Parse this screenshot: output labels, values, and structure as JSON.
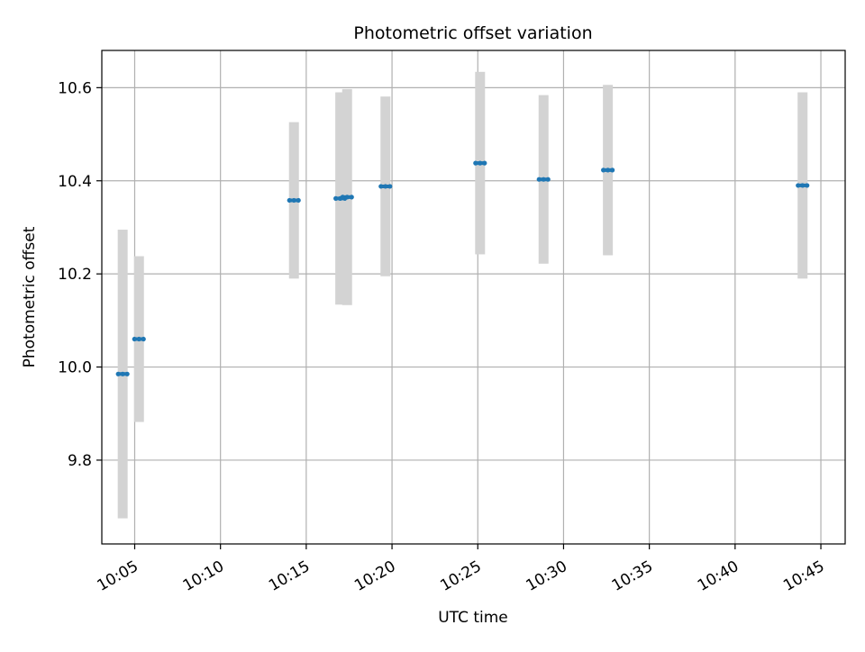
{
  "chart_data": {
    "type": "scatter",
    "title": "Photometric offset variation",
    "xlabel": "UTC time",
    "ylabel": "Photometric offset",
    "x_format": "HH:MM",
    "xlim": [
      "10:03:05",
      "10:46:25"
    ],
    "ylim": [
      9.62,
      10.68
    ],
    "x_ticks": [
      "10:05",
      "10:10",
      "10:15",
      "10:20",
      "10:25",
      "10:30",
      "10:35",
      "10:40",
      "10:45"
    ],
    "y_ticks": [
      9.8,
      10.0,
      10.2,
      10.4,
      10.6
    ],
    "y_tick_labels": [
      "9.8",
      "10.0",
      "10.2",
      "10.4",
      "10.6"
    ],
    "grid": true,
    "colors": {
      "marker": "#1f77b4",
      "errorbar": "#d3d3d3",
      "grid": "#b0b0b0",
      "axes": "#000000"
    },
    "series": [
      {
        "points": [
          {
            "t": "10:04:18",
            "y": 9.985,
            "err": 0.31
          },
          {
            "t": "10:05:15",
            "y": 10.06,
            "err": 0.178
          },
          {
            "t": "10:14:17",
            "y": 10.358,
            "err": 0.168
          },
          {
            "t": "10:16:59",
            "y": 10.362,
            "err": 0.228
          },
          {
            "t": "10:17:23",
            "y": 10.365,
            "err": 0.232
          },
          {
            "t": "10:19:37",
            "y": 10.388,
            "err": 0.193
          },
          {
            "t": "10:25:08",
            "y": 10.438,
            "err": 0.196
          },
          {
            "t": "10:28:50",
            "y": 10.403,
            "err": 0.181
          },
          {
            "t": "10:32:35",
            "y": 10.423,
            "err": 0.183
          },
          {
            "t": "10:43:56",
            "y": 10.39,
            "err": 0.2
          }
        ]
      }
    ]
  }
}
